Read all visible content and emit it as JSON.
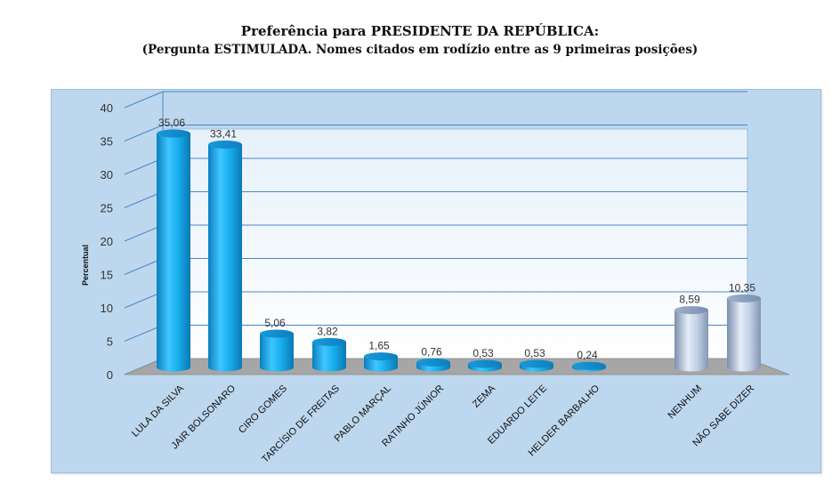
{
  "chart_data": {
    "type": "bar",
    "title": "Preferência para PRESIDENTE DA REPÚBLICA:",
    "subtitle": "(Pergunta ESTIMULADA. Nomes citados em rodízio entre as 9 primeiras posições)",
    "ylabel": "Percentual",
    "xlabel": "",
    "ylim": [
      0,
      40
    ],
    "yticks": [
      0,
      5,
      10,
      15,
      20,
      25,
      30,
      35,
      40
    ],
    "grid": true,
    "categories": [
      "LULA DA SILVA",
      "JAIR BOLSONARO",
      "CIRO GOMES",
      "TARCÍSIO DE FREITAS",
      "PABLO MARÇAL",
      "RATINHO JÚNIOR",
      "ZEMA",
      "EDUARDO LEITE",
      "HELDER BARBALHO",
      "NENHUM",
      "NÃO SABE DIZER"
    ],
    "values": [
      35.06,
      33.41,
      5.06,
      3.82,
      1.65,
      0.76,
      0.53,
      0.53,
      0.24,
      8.59,
      10.35
    ],
    "value_labels": [
      "35,06",
      "33,41",
      "5,06",
      "3,82",
      "1,65",
      "0,76",
      "0,53",
      "0,53",
      "0,24",
      "8,59",
      "10,35"
    ],
    "colors": {
      "candidates": "#1ab0ee",
      "other": "#b8cbe6",
      "background": "#bdd7ee",
      "plot_area": "#f2f8fd",
      "gridline": "#4a86c8",
      "floor": "#a6a6a6"
    }
  }
}
